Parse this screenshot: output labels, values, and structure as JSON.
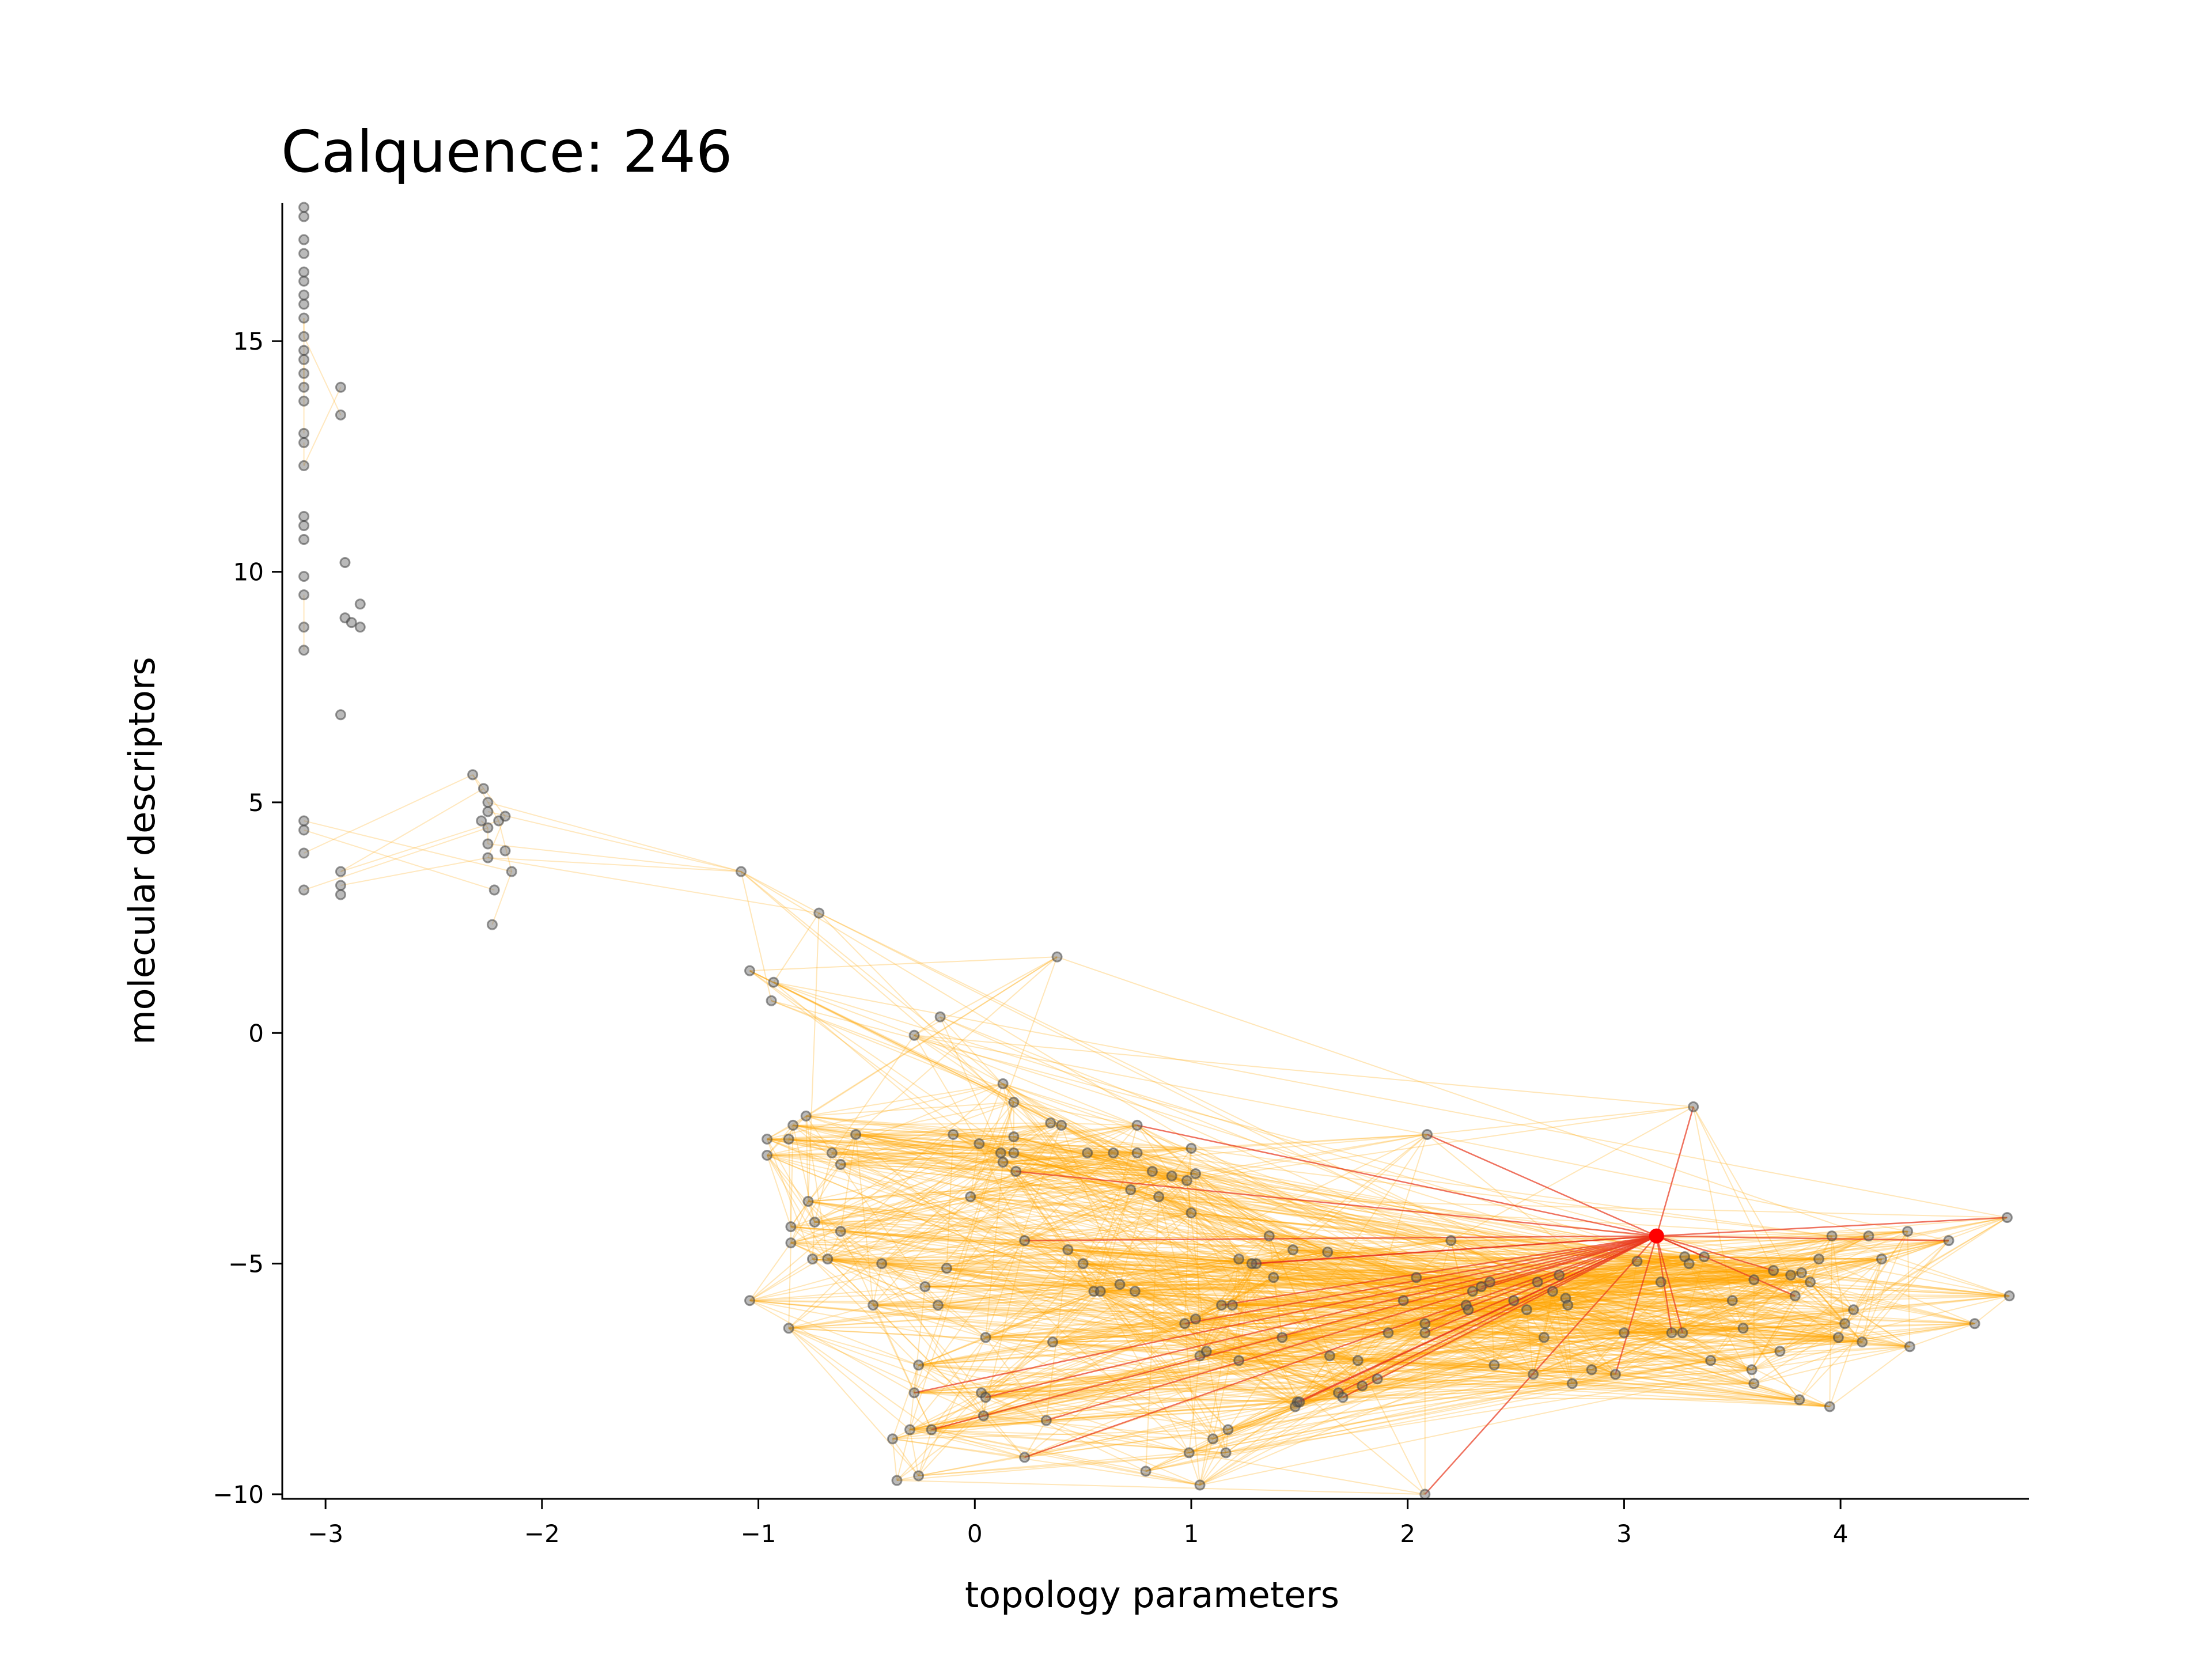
{
  "chart_data": {
    "type": "scatter",
    "title": "Calquence: 246",
    "xlabel": "topology parameters",
    "ylabel": "molecular descriptors",
    "xlim": [
      -3.2,
      4.87
    ],
    "ylim": [
      -10.1,
      18.0
    ],
    "xticks": [
      -3,
      -2,
      -1,
      0,
      1,
      2,
      3,
      4
    ],
    "xtick_labels": [
      "−3",
      "−2",
      "−1",
      "0",
      "1",
      "2",
      "3",
      "4"
    ],
    "yticks": [
      -10,
      -5,
      0,
      5,
      10,
      15
    ],
    "ytick_labels": [
      "−10",
      "−5",
      "0",
      "5",
      "10",
      "15"
    ],
    "grid": false,
    "colors": {
      "point": "#555555",
      "highlight": "#ff0000",
      "edge": "#ffa500",
      "highlight_edge": "#e8361b"
    },
    "highlight_point": [
      3.15,
      -4.4
    ],
    "points": [
      [
        -3.1,
        17.9
      ],
      [
        -3.1,
        17.7
      ],
      [
        -3.1,
        17.2
      ],
      [
        -3.1,
        16.9
      ],
      [
        -3.1,
        16.5
      ],
      [
        -3.1,
        16.3
      ],
      [
        -3.1,
        16.0
      ],
      [
        -3.1,
        15.8
      ],
      [
        -3.1,
        15.5
      ],
      [
        -3.1,
        15.1
      ],
      [
        -3.1,
        14.8
      ],
      [
        -3.1,
        14.6
      ],
      [
        -3.1,
        14.3
      ],
      [
        -3.1,
        14.0
      ],
      [
        -3.1,
        13.7
      ],
      [
        -3.1,
        13.0
      ],
      [
        -3.1,
        12.8
      ],
      [
        -3.1,
        12.3
      ],
      [
        -3.1,
        11.2
      ],
      [
        -3.1,
        11.0
      ],
      [
        -3.1,
        10.7
      ],
      [
        -3.1,
        9.9
      ],
      [
        -3.1,
        9.5
      ],
      [
        -3.1,
        8.8
      ],
      [
        -3.1,
        8.3
      ],
      [
        -3.1,
        4.6
      ],
      [
        -3.1,
        4.4
      ],
      [
        -3.1,
        3.9
      ],
      [
        -3.1,
        3.1
      ],
      [
        -2.93,
        14.0
      ],
      [
        -2.93,
        13.4
      ],
      [
        -2.91,
        10.2
      ],
      [
        -2.91,
        9.0
      ],
      [
        -2.88,
        8.9
      ],
      [
        -2.84,
        9.3
      ],
      [
        -2.84,
        8.8
      ],
      [
        -2.93,
        6.9
      ],
      [
        -2.93,
        3.5
      ],
      [
        -2.93,
        3.2
      ],
      [
        -2.93,
        3.0
      ],
      [
        -2.32,
        5.6
      ],
      [
        -2.27,
        5.3
      ],
      [
        -2.25,
        5.0
      ],
      [
        -2.25,
        4.8
      ],
      [
        -2.28,
        4.6
      ],
      [
        -2.25,
        4.45
      ],
      [
        -2.2,
        4.6
      ],
      [
        -2.17,
        4.7
      ],
      [
        -2.25,
        4.1
      ],
      [
        -2.25,
        3.8
      ],
      [
        -2.17,
        3.95
      ],
      [
        -2.14,
        3.5
      ],
      [
        -2.22,
        3.1
      ],
      [
        -2.23,
        2.35
      ],
      [
        -1.08,
        3.5
      ],
      [
        -0.72,
        2.6
      ],
      [
        -1.04,
        1.35
      ],
      [
        -0.93,
        1.1
      ],
      [
        -0.94,
        0.7
      ],
      [
        0.38,
        1.65
      ],
      [
        -0.16,
        0.35
      ],
      [
        -0.28,
        -0.05
      ],
      [
        -0.78,
        -1.8
      ],
      [
        -0.84,
        -2.0
      ],
      [
        -0.96,
        -2.3
      ],
      [
        -0.96,
        -2.65
      ],
      [
        -0.86,
        -2.3
      ],
      [
        -0.66,
        -2.6
      ],
      [
        -0.62,
        -2.85
      ],
      [
        -0.55,
        -2.2
      ],
      [
        -0.77,
        -3.65
      ],
      [
        -0.74,
        -4.1
      ],
      [
        -0.85,
        -4.2
      ],
      [
        -0.85,
        -4.55
      ],
      [
        -0.62,
        -4.3
      ],
      [
        -0.75,
        -4.9
      ],
      [
        -0.68,
        -4.9
      ],
      [
        -1.04,
        -5.8
      ],
      [
        -0.86,
        -6.4
      ],
      [
        -0.43,
        -5.0
      ],
      [
        -0.47,
        -5.9
      ],
      [
        -0.23,
        -5.5
      ],
      [
        -0.13,
        -5.1
      ],
      [
        -0.17,
        -5.9
      ],
      [
        -0.1,
        -2.2
      ],
      [
        0.02,
        -2.4
      ],
      [
        0.12,
        -2.6
      ],
      [
        0.18,
        -2.25
      ],
      [
        0.18,
        -2.6
      ],
      [
        0.13,
        -2.8
      ],
      [
        0.19,
        -3.0
      ],
      [
        -0.02,
        -3.55
      ],
      [
        0.13,
        -1.1
      ],
      [
        0.18,
        -1.5
      ],
      [
        0.35,
        -1.95
      ],
      [
        0.4,
        -2.0
      ],
      [
        0.52,
        -2.6
      ],
      [
        0.64,
        -2.6
      ],
      [
        0.75,
        -2.0
      ],
      [
        0.75,
        -2.6
      ],
      [
        1.0,
        -2.5
      ],
      [
        0.82,
        -3.0
      ],
      [
        0.91,
        -3.1
      ],
      [
        0.98,
        -3.2
      ],
      [
        1.02,
        -3.05
      ],
      [
        0.72,
        -3.4
      ],
      [
        0.85,
        -3.55
      ],
      [
        1.0,
        -3.9
      ],
      [
        0.23,
        -4.5
      ],
      [
        0.43,
        -4.7
      ],
      [
        0.5,
        -5.0
      ],
      [
        0.55,
        -5.6
      ],
      [
        0.58,
        -5.6
      ],
      [
        0.67,
        -5.45
      ],
      [
        0.74,
        -5.6
      ],
      [
        0.97,
        -6.3
      ],
      [
        1.02,
        -6.2
      ],
      [
        1.14,
        -5.9
      ],
      [
        1.19,
        -5.9
      ],
      [
        1.3,
        -5.0
      ],
      [
        1.36,
        -4.4
      ],
      [
        1.47,
        -4.7
      ],
      [
        1.63,
        -4.75
      ],
      [
        1.38,
        -5.3
      ],
      [
        1.22,
        -4.9
      ],
      [
        1.28,
        -5.0
      ],
      [
        1.04,
        -7.0
      ],
      [
        1.07,
        -6.9
      ],
      [
        1.22,
        -7.1
      ],
      [
        1.42,
        -6.6
      ],
      [
        1.49,
        -8.0
      ],
      [
        1.68,
        -7.8
      ],
      [
        1.79,
        -7.65
      ],
      [
        1.86,
        -7.5
      ],
      [
        1.64,
        -7.0
      ],
      [
        1.77,
        -7.1
      ],
      [
        1.91,
        -6.5
      ],
      [
        1.98,
        -5.8
      ],
      [
        2.04,
        -5.3
      ],
      [
        2.08,
        -6.3
      ],
      [
        2.08,
        -6.5
      ],
      [
        2.09,
        -2.2
      ],
      [
        2.2,
        -4.5
      ],
      [
        2.27,
        -5.9
      ],
      [
        2.28,
        -6.0
      ],
      [
        2.3,
        -5.6
      ],
      [
        2.34,
        -5.5
      ],
      [
        2.38,
        -5.4
      ],
      [
        2.4,
        -7.2
      ],
      [
        2.49,
        -5.8
      ],
      [
        2.55,
        -6.0
      ],
      [
        2.6,
        -5.4
      ],
      [
        2.63,
        -6.6
      ],
      [
        2.67,
        -5.6
      ],
      [
        2.7,
        -5.25
      ],
      [
        2.73,
        -5.75
      ],
      [
        2.74,
        -5.9
      ],
      [
        2.58,
        -7.4
      ],
      [
        2.76,
        -7.6
      ],
      [
        2.85,
        -7.3
      ],
      [
        2.96,
        -7.4
      ],
      [
        3.0,
        -6.5
      ],
      [
        3.17,
        -5.4
      ],
      [
        3.06,
        -4.95
      ],
      [
        3.28,
        -4.85
      ],
      [
        3.3,
        -5.0
      ],
      [
        3.37,
        -4.85
      ],
      [
        3.32,
        -1.6
      ],
      [
        3.22,
        -6.5
      ],
      [
        3.27,
        -6.5
      ],
      [
        3.4,
        -7.1
      ],
      [
        3.5,
        -5.8
      ],
      [
        3.55,
        -6.4
      ],
      [
        3.6,
        -5.35
      ],
      [
        3.59,
        -7.3
      ],
      [
        3.6,
        -7.6
      ],
      [
        3.69,
        -5.15
      ],
      [
        3.77,
        -5.25
      ],
      [
        3.82,
        -5.2
      ],
      [
        3.79,
        -5.7
      ],
      [
        3.86,
        -5.4
      ],
      [
        3.9,
        -4.9
      ],
      [
        3.96,
        -4.4
      ],
      [
        3.72,
        -6.9
      ],
      [
        3.81,
        -7.95
      ],
      [
        3.95,
        -8.1
      ],
      [
        3.99,
        -6.6
      ],
      [
        4.02,
        -6.3
      ],
      [
        4.06,
        -6.0
      ],
      [
        4.1,
        -6.7
      ],
      [
        4.13,
        -4.4
      ],
      [
        4.19,
        -4.9
      ],
      [
        4.31,
        -4.3
      ],
      [
        4.5,
        -4.5
      ],
      [
        4.32,
        -6.8
      ],
      [
        4.62,
        -6.3
      ],
      [
        4.77,
        -4.0
      ],
      [
        4.78,
        -5.7
      ],
      [
        0.36,
        -6.7
      ],
      [
        0.05,
        -6.6
      ],
      [
        0.03,
        -7.8
      ],
      [
        0.05,
        -7.9
      ],
      [
        -0.26,
        -7.2
      ],
      [
        -0.28,
        -7.8
      ],
      [
        -0.3,
        -8.6
      ],
      [
        -0.2,
        -8.6
      ],
      [
        -0.38,
        -8.8
      ],
      [
        -0.36,
        -9.7
      ],
      [
        -0.26,
        -9.6
      ],
      [
        0.04,
        -8.3
      ],
      [
        0.23,
        -9.2
      ],
      [
        0.33,
        -8.4
      ],
      [
        0.79,
        -9.5
      ],
      [
        0.99,
        -9.1
      ],
      [
        1.04,
        -9.8
      ],
      [
        1.1,
        -8.8
      ],
      [
        1.16,
        -9.1
      ],
      [
        1.17,
        -8.6
      ],
      [
        2.08,
        -10.0
      ],
      [
        1.48,
        -8.1
      ],
      [
        1.7,
        -7.9
      ],
      [
        1.5,
        -8.0
      ]
    ]
  }
}
